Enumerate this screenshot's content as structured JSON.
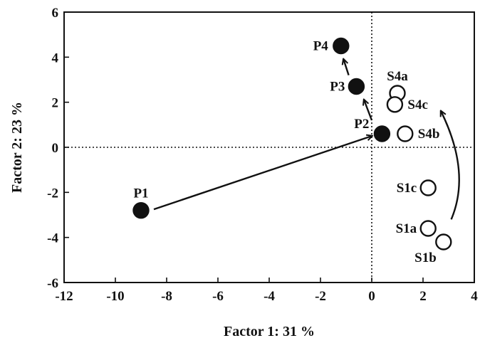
{
  "chart_data": {
    "type": "scatter",
    "xlabel": "Factor 1: 31 %",
    "ylabel": "Factor 2: 23 %",
    "xlim": [
      -12,
      4
    ],
    "ylim": [
      -6,
      6
    ],
    "x_ticks": [
      -12,
      -10,
      -8,
      -6,
      -4,
      -2,
      0,
      2,
      4
    ],
    "y_ticks": [
      -6,
      -4,
      -2,
      0,
      2,
      4,
      6
    ],
    "x_tick_labels": [
      "-12",
      "-10",
      "-8",
      "-6",
      "-4",
      "-2",
      "0",
      "2",
      "4"
    ],
    "y_tick_labels": [
      "-6",
      "-4",
      "-2",
      "0",
      "2",
      "4",
      "6"
    ],
    "reference_lines": {
      "x": 0,
      "y": 0,
      "style": "dotted"
    },
    "grid": false,
    "series": [
      {
        "marker": "filled-circle",
        "points": [
          {
            "label": "P1",
            "x": -9.0,
            "y": -2.8
          },
          {
            "label": "P2",
            "x": 0.4,
            "y": 0.6
          },
          {
            "label": "P3",
            "x": -0.6,
            "y": 2.7
          },
          {
            "label": "P4",
            "x": -1.2,
            "y": 4.5
          }
        ]
      },
      {
        "marker": "open-circle",
        "points": [
          {
            "label": "S4a",
            "x": 1.0,
            "y": 2.4
          },
          {
            "label": "S4c",
            "x": 0.9,
            "y": 1.9
          },
          {
            "label": "S4b",
            "x": 1.3,
            "y": 0.6
          },
          {
            "label": "S1c",
            "x": 2.2,
            "y": -1.8
          },
          {
            "label": "S1a",
            "x": 2.2,
            "y": -3.6
          },
          {
            "label": "S1b",
            "x": 2.8,
            "y": -4.2
          }
        ]
      }
    ],
    "arrows": [
      {
        "from": [
          -8.5,
          -2.75
        ],
        "to": [
          0.0,
          0.5
        ],
        "shape": "straight"
      },
      {
        "from": [
          0.0,
          1.2
        ],
        "to": [
          -0.3,
          2.1
        ],
        "shape": "straight"
      },
      {
        "from": [
          -0.9,
          3.2
        ],
        "to": [
          -1.1,
          3.9
        ],
        "shape": "straight"
      },
      {
        "from": [
          3.1,
          -3.2
        ],
        "to": [
          2.7,
          1.6
        ],
        "shape": "curved"
      }
    ]
  }
}
